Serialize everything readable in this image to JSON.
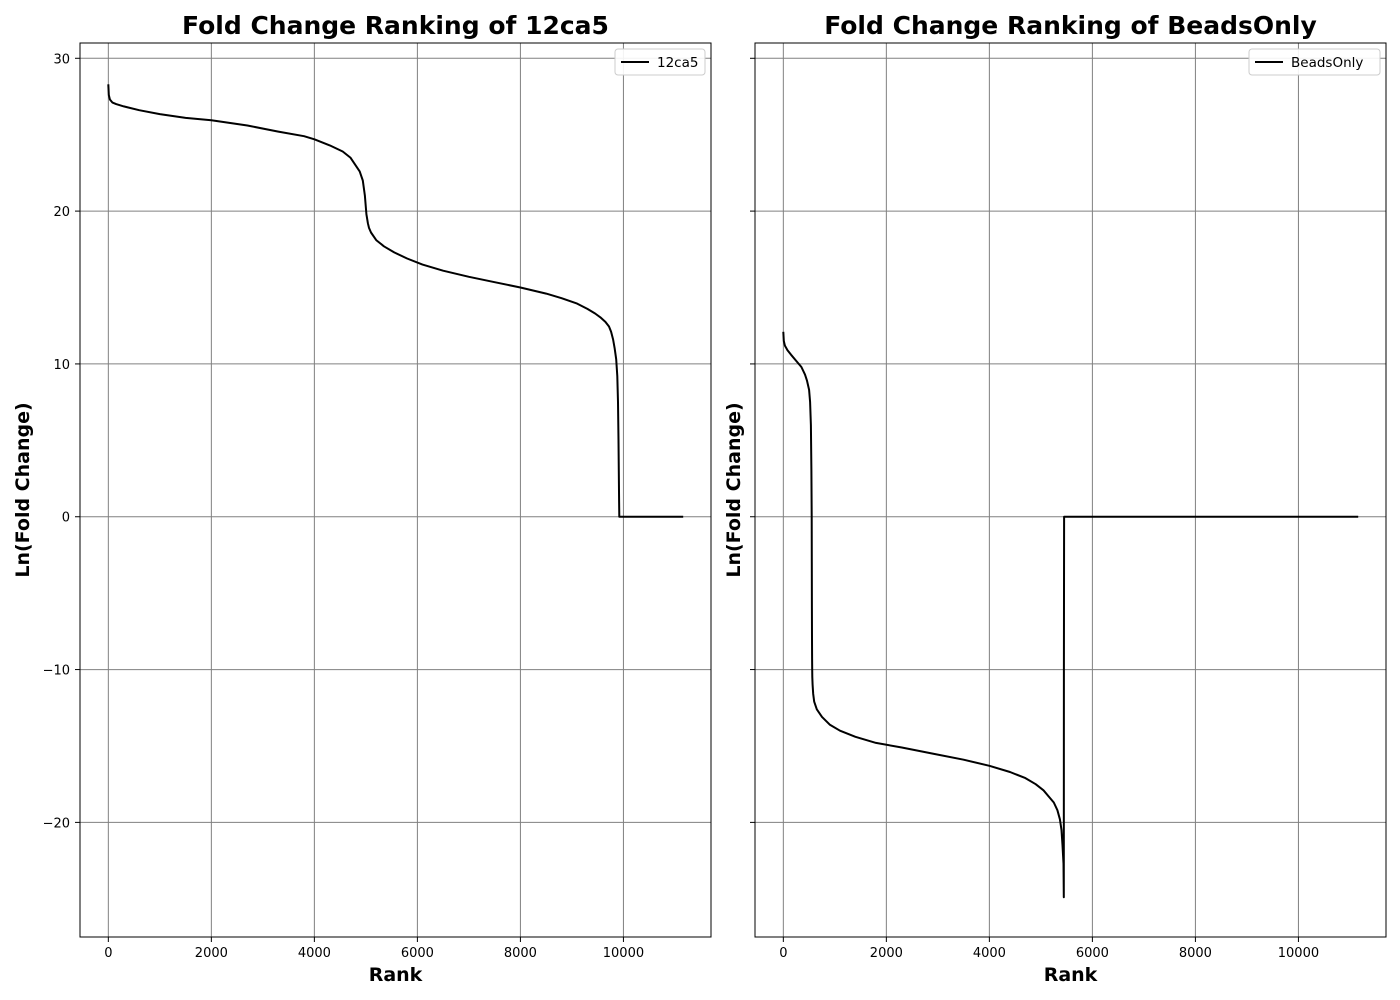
{
  "chart_data": [
    {
      "type": "line",
      "title": "Fold Change Ranking of 12ca5",
      "xlabel": "Rank",
      "ylabel": "Ln(Fold Change)",
      "xlim": [
        -550,
        11700
      ],
      "ylim": [
        -27.5,
        31
      ],
      "xticks": [
        0,
        2000,
        4000,
        6000,
        8000,
        10000
      ],
      "xtick_labels": [
        "0",
        "2000",
        "4000",
        "6000",
        "8000",
        "10000"
      ],
      "yticks": [
        30,
        20,
        10,
        0,
        -10,
        -20
      ],
      "ytick_labels": [
        "30",
        "20",
        "10",
        "0",
        "−10",
        "−20"
      ],
      "grid": true,
      "legend_position": "upper right",
      "series": [
        {
          "name": "12ca5",
          "color": "#000000",
          "x": [
            0,
            10,
            30,
            80,
            150,
            300,
            600,
            1000,
            1500,
            2000,
            2700,
            3300,
            3800,
            4000,
            4300,
            4550,
            4700,
            4800,
            4880,
            4940,
            4980,
            5010,
            5040,
            5060,
            5100,
            5200,
            5350,
            5550,
            5800,
            6100,
            6500,
            7000,
            7500,
            8000,
            8500,
            8800,
            9100,
            9300,
            9450,
            9550,
            9650,
            9720,
            9760,
            9800,
            9830,
            9860,
            9880,
            9895,
            9905,
            9910,
            9915,
            9920,
            10200,
            10600,
            11000,
            11160
          ],
          "y": [
            28.3,
            27.6,
            27.3,
            27.1,
            27.0,
            26.85,
            26.6,
            26.35,
            26.1,
            25.95,
            25.6,
            25.2,
            24.9,
            24.7,
            24.3,
            23.9,
            23.5,
            23.0,
            22.6,
            22.0,
            21.0,
            19.8,
            19.2,
            18.9,
            18.6,
            18.1,
            17.7,
            17.3,
            16.9,
            16.5,
            16.1,
            15.7,
            15.35,
            15.0,
            14.6,
            14.3,
            13.95,
            13.6,
            13.3,
            13.05,
            12.75,
            12.45,
            12.1,
            11.6,
            11.0,
            10.3,
            9.2,
            7.5,
            5.0,
            3.0,
            1.0,
            0.0,
            0.0,
            0.0,
            0.0,
            0.0
          ]
        }
      ]
    },
    {
      "type": "line",
      "title": "Fold Change Ranking of BeadsOnly",
      "xlabel": "Rank",
      "ylabel": "Ln(Fold Change)",
      "xlim": [
        -550,
        11700
      ],
      "ylim": [
        -27.5,
        31
      ],
      "xticks": [
        0,
        2000,
        4000,
        6000,
        8000,
        10000
      ],
      "xtick_labels": [
        "0",
        "2000",
        "4000",
        "6000",
        "8000",
        "10000"
      ],
      "yticks": [
        30,
        20,
        10,
        0,
        -10,
        -20
      ],
      "ytick_labels": [
        "",
        "",
        "",
        "",
        "",
        ""
      ],
      "grid": true,
      "legend_position": "upper right",
      "series": [
        {
          "name": "BeadsOnly",
          "color": "#000000",
          "x": [
            0,
            10,
            30,
            80,
            150,
            250,
            350,
            420,
            460,
            500,
            520,
            535,
            545,
            550,
            552,
            554,
            556,
            558,
            560,
            563,
            568,
            580,
            600,
            650,
            750,
            900,
            1100,
            1400,
            1800,
            2300,
            2900,
            3500,
            4000,
            4400,
            4700,
            4900,
            5050,
            5150,
            5250,
            5320,
            5370,
            5400,
            5420,
            5440,
            5445,
            5447,
            5450,
            5455,
            6000,
            8000,
            10000,
            11160
          ],
          "y": [
            12.1,
            11.5,
            11.2,
            10.9,
            10.6,
            10.2,
            9.8,
            9.3,
            8.9,
            8.3,
            7.5,
            6.0,
            3.0,
            0.0,
            -3.0,
            -6.0,
            -8.0,
            -9.3,
            -10.0,
            -10.5,
            -11.0,
            -11.6,
            -12.1,
            -12.6,
            -13.1,
            -13.6,
            -14.0,
            -14.4,
            -14.8,
            -15.1,
            -15.5,
            -15.9,
            -16.3,
            -16.7,
            -17.1,
            -17.5,
            -17.9,
            -18.3,
            -18.7,
            -19.2,
            -19.8,
            -20.5,
            -21.5,
            -22.7,
            -24.9,
            -10.0,
            0.0,
            0.0,
            0.0,
            0.0,
            0.0,
            0.0
          ]
        }
      ]
    }
  ]
}
